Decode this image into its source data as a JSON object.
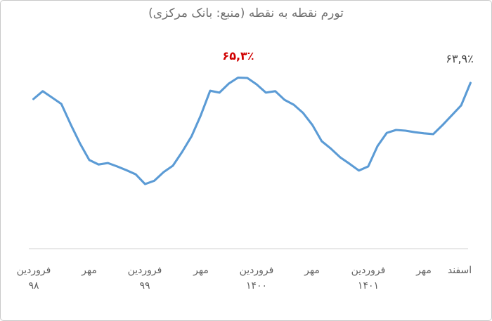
{
  "title": {
    "text": "تورم نقطه به نقطه (منبع: بانک مرکزی)",
    "color": "#707070"
  },
  "annotations": {
    "peak": {
      "text": "۶۵,۳٪",
      "value": 65.3,
      "month_index": 23,
      "color": "#d00000"
    },
    "latest": {
      "text": "۶۳,۹٪",
      "value": 63.9,
      "month_index": 48,
      "color": "#3d3d3d"
    }
  },
  "chart_data": {
    "type": "line",
    "title": "تورم نقطه به نقطه (منبع: بانک مرکزی)",
    "series_name": "تورم نقطه به نقطه (٪)",
    "n_points": 48,
    "values": [
      59.6,
      61.7,
      60.0,
      58.3,
      52.9,
      47.8,
      43.4,
      42.2,
      42.6,
      41.7,
      40.7,
      39.6,
      37.0,
      37.9,
      40.2,
      41.9,
      45.6,
      49.7,
      55.3,
      61.8,
      61.3,
      63.7,
      65.3,
      65.2,
      63.5,
      61.3,
      61.7,
      59.4,
      58.1,
      55.9,
      52.7,
      48.4,
      46.4,
      44.1,
      42.4,
      40.6,
      41.7,
      47.1,
      50.6,
      51.4,
      51.2,
      50.8,
      50.5,
      50.3,
      52.7,
      55.3,
      57.9,
      63.9
    ],
    "x_tick_labels": [
      {
        "month_index": 1,
        "line1": "فروردین",
        "line2": "۹۸"
      },
      {
        "month_index": 7,
        "line1": "مهر",
        "line2": ""
      },
      {
        "month_index": 13,
        "line1": "فروردین",
        "line2": "۹۹"
      },
      {
        "month_index": 19,
        "line1": "مهر",
        "line2": ""
      },
      {
        "month_index": 25,
        "line1": "فروردین",
        "line2": "۱۴۰۰"
      },
      {
        "month_index": 31,
        "line1": "مهر",
        "line2": ""
      },
      {
        "month_index": 37,
        "line1": "فروردین",
        "line2": "۱۴۰۱"
      },
      {
        "month_index": 43,
        "line1": "مهر",
        "line2": ""
      },
      {
        "month_index": 48,
        "line1": "اسفند",
        "line2": ""
      }
    ],
    "data_labels": [
      {
        "month_index": 23,
        "text": "۶۵,۳٪",
        "value": 65.3
      },
      {
        "month_index": 48,
        "text": "۶۳,۹٪",
        "value": 63.9
      }
    ],
    "line_color": "#5b9bd5",
    "axis_color": "#d9d9d9",
    "ylim": [
      36,
      67
    ],
    "grid": false,
    "legend": false
  }
}
